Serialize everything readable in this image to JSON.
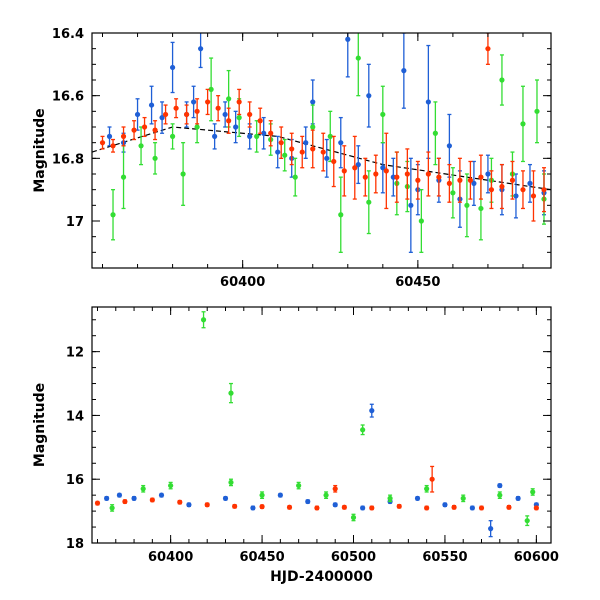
{
  "chart_data": [
    {
      "type": "scatter",
      "panel": "top",
      "xlabel": "",
      "ylabel": "Magnitude",
      "xlim": [
        60357,
        60488
      ],
      "ylim": [
        17.15,
        16.4
      ],
      "inverted_y": true,
      "x_ticks": [
        60400,
        60450
      ],
      "x_tick_labels": [
        "60400",
        "60450"
      ],
      "y_ticks": [
        16.4,
        16.6,
        16.8,
        17.0
      ],
      "y_tick_labels": [
        "16.4",
        "16.6",
        "16.8",
        "17"
      ],
      "grid": false,
      "trend_line": {
        "x": [
          60357,
          60380,
          60410,
          60440,
          60488
        ],
        "y": [
          16.78,
          16.7,
          16.73,
          16.82,
          16.9
        ],
        "style": "dashed",
        "color": "#000000"
      },
      "series": [
        {
          "color": "#1f5fd6",
          "points": [
            [
              60362,
              16.73
            ],
            [
              60366,
              16.75
            ],
            [
              60370,
              16.66
            ],
            [
              60374,
              16.63
            ],
            [
              60377,
              16.67
            ],
            [
              60380,
              16.51
            ],
            [
              60384,
              16.66
            ],
            [
              60386,
              16.62
            ],
            [
              60388,
              16.45
            ],
            [
              60392,
              16.73
            ],
            [
              60395,
              16.66
            ],
            [
              60398,
              16.7
            ],
            [
              60402,
              16.73
            ],
            [
              60406,
              16.72
            ],
            [
              60410,
              16.78
            ],
            [
              60414,
              16.8
            ],
            [
              60418,
              16.75
            ],
            [
              60420,
              16.62
            ],
            [
              60424,
              16.8
            ],
            [
              60428,
              16.75
            ],
            [
              60430,
              16.42
            ],
            [
              60433,
              16.82
            ],
            [
              60436,
              16.6
            ],
            [
              60440,
              16.83
            ],
            [
              60443,
              16.86
            ],
            [
              60446,
              16.52
            ],
            [
              60448,
              16.95
            ],
            [
              60450,
              16.9
            ],
            [
              60453,
              16.62
            ],
            [
              60456,
              16.87
            ],
            [
              60459,
              16.76
            ],
            [
              60462,
              16.93
            ],
            [
              60466,
              16.88
            ],
            [
              60470,
              16.85
            ],
            [
              60474,
              16.9
            ],
            [
              60478,
              16.92
            ],
            [
              60482,
              16.88
            ],
            [
              60486,
              16.91
            ]
          ],
          "errors": [
            0.03,
            0.03,
            0.05,
            0.06,
            0.05,
            0.08,
            0.04,
            0.05,
            0.06,
            0.04,
            0.04,
            0.05,
            0.04,
            0.05,
            0.05,
            0.06,
            0.05,
            0.07,
            0.06,
            0.08,
            0.12,
            0.06,
            0.1,
            0.08,
            0.06,
            0.12,
            0.15,
            0.08,
            0.18,
            0.07,
            0.1,
            0.09,
            0.07,
            0.06,
            0.08,
            0.07,
            0.06,
            0.07
          ]
        },
        {
          "color": "#33dd33",
          "points": [
            [
              60363,
              16.98
            ],
            [
              60366,
              16.86
            ],
            [
              60371,
              16.76
            ],
            [
              60375,
              16.8
            ],
            [
              60380,
              16.73
            ],
            [
              60383,
              16.85
            ],
            [
              60387,
              16.7
            ],
            [
              60391,
              16.58
            ],
            [
              60396,
              16.61
            ],
            [
              60399,
              16.67
            ],
            [
              60404,
              16.73
            ],
            [
              60408,
              16.74
            ],
            [
              60412,
              16.79
            ],
            [
              60415,
              16.86
            ],
            [
              60420,
              16.7
            ],
            [
              60425,
              16.73
            ],
            [
              60428,
              16.98
            ],
            [
              60433,
              16.48
            ],
            [
              60436,
              16.94
            ],
            [
              60440,
              16.66
            ],
            [
              60444,
              16.88
            ],
            [
              60447,
              16.89
            ],
            [
              60451,
              17.0
            ],
            [
              60455,
              16.72
            ],
            [
              60460,
              16.91
            ],
            [
              60464,
              16.95
            ],
            [
              60468,
              16.96
            ],
            [
              60471,
              16.87
            ],
            [
              60474,
              16.55
            ],
            [
              60477,
              16.85
            ],
            [
              60480,
              16.69
            ],
            [
              60484,
              16.65
            ],
            [
              60486,
              16.93
            ]
          ],
          "errors": [
            0.08,
            0.1,
            0.06,
            0.05,
            0.04,
            0.1,
            0.05,
            0.1,
            0.09,
            0.06,
            0.05,
            0.05,
            0.05,
            0.06,
            0.07,
            0.08,
            0.12,
            0.12,
            0.1,
            0.09,
            0.1,
            0.08,
            0.1,
            0.1,
            0.08,
            0.1,
            0.1,
            0.07,
            0.08,
            0.07,
            0.12,
            0.1,
            0.08
          ]
        },
        {
          "color": "#ff3300",
          "points": [
            [
              60360,
              16.75
            ],
            [
              60363,
              16.76
            ],
            [
              60366,
              16.73
            ],
            [
              60369,
              16.71
            ],
            [
              60372,
              16.7
            ],
            [
              60375,
              16.71
            ],
            [
              60378,
              16.66
            ],
            [
              60381,
              16.64
            ],
            [
              60384,
              16.66
            ],
            [
              60387,
              16.65
            ],
            [
              60390,
              16.62
            ],
            [
              60393,
              16.64
            ],
            [
              60396,
              16.68
            ],
            [
              60399,
              16.62
            ],
            [
              60402,
              16.66
            ],
            [
              60405,
              16.68
            ],
            [
              60408,
              16.72
            ],
            [
              60411,
              16.75
            ],
            [
              60414,
              16.77
            ],
            [
              60417,
              16.78
            ],
            [
              60420,
              16.77
            ],
            [
              60423,
              16.78
            ],
            [
              60426,
              16.81
            ],
            [
              60429,
              16.84
            ],
            [
              60432,
              16.83
            ],
            [
              60435,
              16.86
            ],
            [
              60438,
              16.85
            ],
            [
              60441,
              16.84
            ],
            [
              60444,
              16.86
            ],
            [
              60447,
              16.85
            ],
            [
              60450,
              16.87
            ],
            [
              60453,
              16.85
            ],
            [
              60456,
              16.86
            ],
            [
              60459,
              16.88
            ],
            [
              60462,
              16.87
            ],
            [
              60465,
              16.87
            ],
            [
              60468,
              16.86
            ],
            [
              60471,
              16.9
            ],
            [
              60474,
              16.89
            ],
            [
              60477,
              16.87
            ],
            [
              60480,
              16.9
            ],
            [
              60483,
              16.92
            ],
            [
              60486,
              16.9
            ],
            [
              60470,
              16.45
            ]
          ],
          "errors": [
            0.02,
            0.02,
            0.03,
            0.03,
            0.03,
            0.03,
            0.03,
            0.03,
            0.03,
            0.04,
            0.04,
            0.04,
            0.04,
            0.04,
            0.04,
            0.04,
            0.04,
            0.05,
            0.05,
            0.05,
            0.06,
            0.06,
            0.08,
            0.08,
            0.1,
            0.06,
            0.06,
            0.12,
            0.08,
            0.08,
            0.06,
            0.07,
            0.06,
            0.06,
            0.07,
            0.06,
            0.07,
            0.06,
            0.07,
            0.06,
            0.06,
            0.08,
            0.07,
            0.05
          ]
        }
      ]
    },
    {
      "type": "scatter",
      "panel": "bottom",
      "xlabel": "HJD-2400000",
      "ylabel": "Magnitude",
      "xlim": [
        60357,
        60608
      ],
      "ylim": [
        18.0,
        10.6
      ],
      "inverted_y": true,
      "x_ticks": [
        60400,
        60450,
        60500,
        60550,
        60600
      ],
      "x_tick_labels": [
        "60400",
        "60450",
        "60500",
        "60550",
        "60600"
      ],
      "y_ticks": [
        12,
        14,
        16,
        18
      ],
      "y_tick_labels": [
        "12",
        "14",
        "16",
        "18"
      ],
      "grid": false,
      "series": [
        {
          "color": "#1f5fd6",
          "points": [
            [
              60365,
              16.6
            ],
            [
              60372,
              16.5
            ],
            [
              60380,
              16.6
            ],
            [
              60395,
              16.5
            ],
            [
              60410,
              16.8
            ],
            [
              60430,
              16.6
            ],
            [
              60445,
              16.9
            ],
            [
              60460,
              16.5
            ],
            [
              60475,
              16.7
            ],
            [
              60490,
              16.8
            ],
            [
              60505,
              16.9
            ],
            [
              60510,
              13.85
            ],
            [
              60520,
              16.7
            ],
            [
              60535,
              16.6
            ],
            [
              60550,
              16.8
            ],
            [
              60565,
              16.9
            ],
            [
              60575,
              17.55
            ],
            [
              60580,
              16.2
            ],
            [
              60590,
              16.6
            ],
            [
              60600,
              16.8
            ]
          ],
          "errors": [
            0.05,
            0.05,
            0.05,
            0.05,
            0.05,
            0.05,
            0.05,
            0.05,
            0.05,
            0.05,
            0.05,
            0.2,
            0.05,
            0.05,
            0.05,
            0.05,
            0.25,
            0.05,
            0.05,
            0.05
          ]
        },
        {
          "color": "#33dd33",
          "points": [
            [
              60368,
              16.9
            ],
            [
              60385,
              16.3
            ],
            [
              60400,
              16.2
            ],
            [
              60418,
              11.0
            ],
            [
              60433,
              13.3
            ],
            [
              60433,
              16.1
            ],
            [
              60450,
              16.5
            ],
            [
              60470,
              16.2
            ],
            [
              60485,
              16.5
            ],
            [
              60500,
              17.2
            ],
            [
              60505,
              14.45
            ],
            [
              60520,
              16.6
            ],
            [
              60540,
              16.3
            ],
            [
              60560,
              16.6
            ],
            [
              60580,
              16.5
            ],
            [
              60595,
              17.3
            ],
            [
              60598,
              16.4
            ]
          ],
          "errors": [
            0.1,
            0.1,
            0.1,
            0.25,
            0.3,
            0.1,
            0.1,
            0.1,
            0.1,
            0.1,
            0.15,
            0.1,
            0.1,
            0.1,
            0.1,
            0.15,
            0.1
          ]
        },
        {
          "color": "#ff3300",
          "points": [
            [
              60360,
              16.75
            ],
            [
              60375,
              16.7
            ],
            [
              60390,
              16.65
            ],
            [
              60405,
              16.72
            ],
            [
              60420,
              16.8
            ],
            [
              60435,
              16.85
            ],
            [
              60450,
              16.86
            ],
            [
              60465,
              16.88
            ],
            [
              60480,
              16.9
            ],
            [
              60490,
              16.3
            ],
            [
              60495,
              16.88
            ],
            [
              60510,
              16.9
            ],
            [
              60525,
              16.85
            ],
            [
              60540,
              16.9
            ],
            [
              60543,
              16.0
            ],
            [
              60555,
              16.88
            ],
            [
              60570,
              16.9
            ],
            [
              60585,
              16.88
            ],
            [
              60600,
              16.9
            ]
          ],
          "errors": [
            0.05,
            0.05,
            0.05,
            0.05,
            0.05,
            0.05,
            0.05,
            0.05,
            0.05,
            0.1,
            0.05,
            0.05,
            0.05,
            0.05,
            0.4,
            0.05,
            0.05,
            0.05,
            0.05
          ]
        }
      ]
    }
  ]
}
